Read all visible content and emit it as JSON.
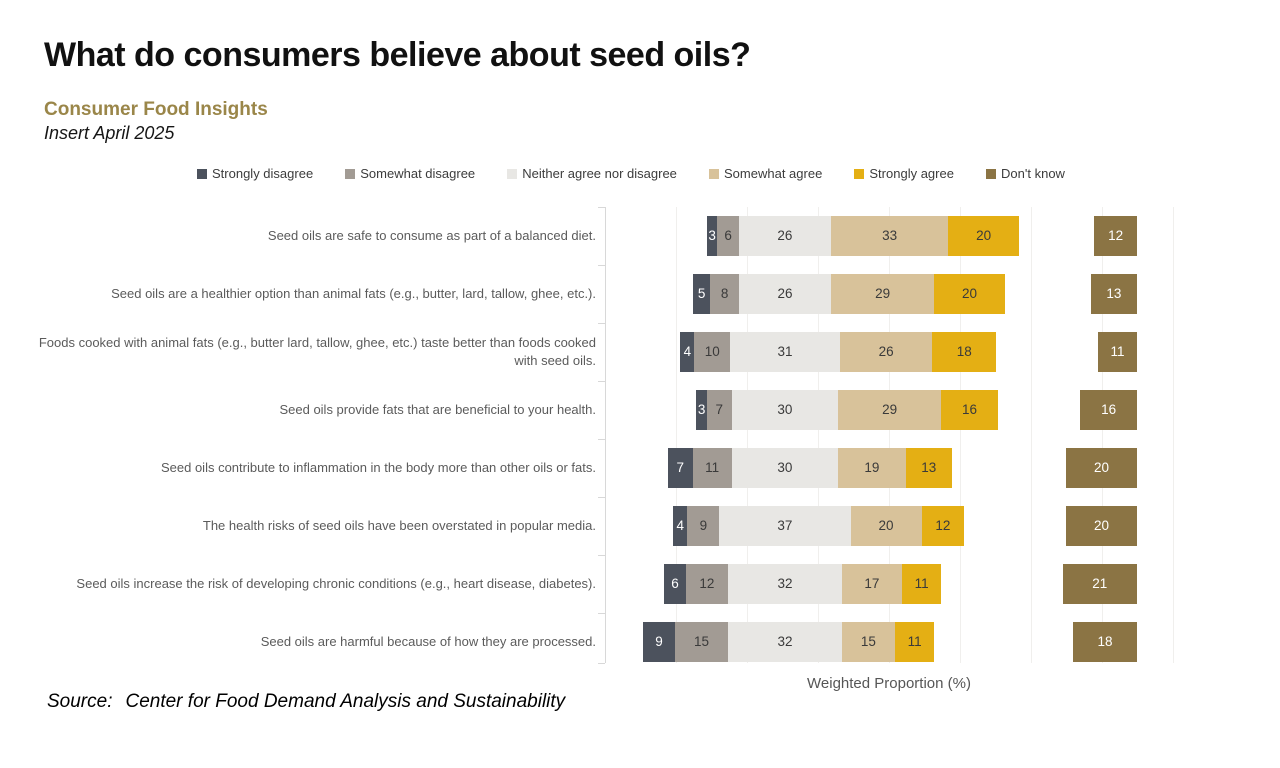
{
  "chart_data": {
    "type": "bar",
    "variant": "diverging-stacked-horizontal",
    "title": "What do consumers believe about seed oils?",
    "subtitle": "Consumer Food Insights",
    "edition": "Insert April 2025",
    "xlabel": "Weighted Proportion (%)",
    "source_label": "Source:",
    "source": "Center for Food Demand Analysis and Sustainability",
    "legend_position": "top",
    "grid": "faint-vertical-gridlines",
    "legend": [
      {
        "label": "Strongly disagree",
        "color": "#4c525d",
        "text": "#ffffff"
      },
      {
        "label": "Somewhat disagree",
        "color": "#a29b94",
        "text": "#3a3a3a"
      },
      {
        "label": "Neither agree nor disagree",
        "color": "#e8e7e4",
        "text": "#3a3a3a"
      },
      {
        "label": "Somewhat agree",
        "color": "#d8c29a",
        "text": "#3a3a3a"
      },
      {
        "label": "Strongly agree",
        "color": "#e4af14",
        "text": "#3a3a3a"
      },
      {
        "label": "Don't know",
        "color": "#8b7444",
        "text": "#ffffff"
      }
    ],
    "series_names": [
      "Strongly disagree",
      "Somewhat disagree",
      "Neither agree nor disagree",
      "Somewhat agree",
      "Strongly agree",
      "Don't know"
    ],
    "categories": [
      "Seed oils are safe to consume as part of a balanced diet.",
      "Seed oils are a healthier option than animal fats (e.g., butter, lard, tallow, ghee, etc.).",
      "Foods cooked with animal fats (e.g., butter lard, tallow, ghee, etc.) taste better than foods cooked with seed oils.",
      "Seed oils provide fats that are beneficial to your health.",
      "Seed oils contribute to inflammation in the body more than other oils or fats.",
      "The health risks of seed oils have been overstated in popular media.",
      "Seed oils increase the risk of developing chronic conditions (e.g., heart disease, diabetes).",
      "Seed oils are harmful because of how they are processed."
    ],
    "rows": [
      {
        "values": [
          3,
          6,
          26,
          33,
          20
        ],
        "dont_know": 12
      },
      {
        "values": [
          5,
          8,
          26,
          29,
          20
        ],
        "dont_know": 13
      },
      {
        "values": [
          4,
          10,
          31,
          26,
          18
        ],
        "dont_know": 11
      },
      {
        "values": [
          3,
          7,
          30,
          29,
          16
        ],
        "dont_know": 16
      },
      {
        "values": [
          7,
          11,
          30,
          19,
          13
        ],
        "dont_know": 20
      },
      {
        "values": [
          4,
          9,
          37,
          20,
          12
        ],
        "dont_know": 20
      },
      {
        "values": [
          6,
          12,
          32,
          17,
          11
        ],
        "dont_know": 21
      },
      {
        "values": [
          9,
          15,
          32,
          15,
          11
        ],
        "dont_know": 18
      }
    ]
  }
}
